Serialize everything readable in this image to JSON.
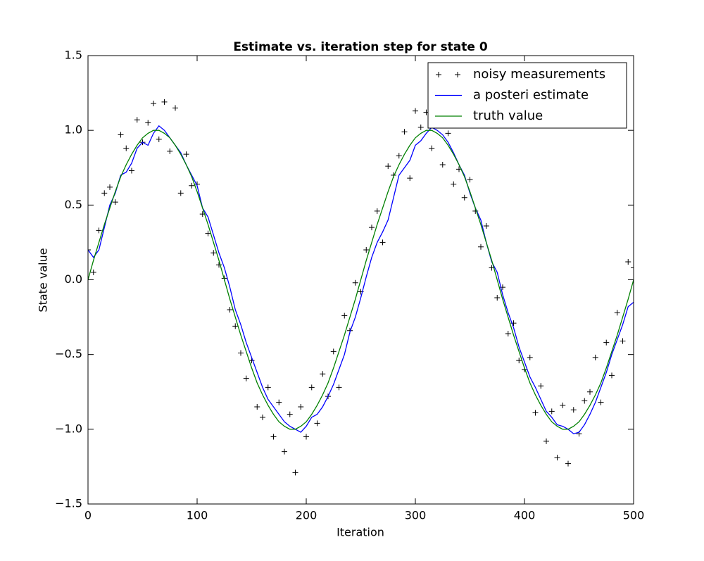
{
  "chart_data": {
    "type": "line",
    "title": "Estimate vs. iteration step for state 0",
    "x_label": "Iteration",
    "y_label": "State value",
    "x": [
      0,
      5,
      10,
      15,
      20,
      25,
      30,
      35,
      40,
      45,
      50,
      55,
      60,
      65,
      70,
      75,
      80,
      85,
      90,
      95,
      100,
      105,
      110,
      115,
      120,
      125,
      130,
      135,
      140,
      145,
      150,
      155,
      160,
      165,
      170,
      175,
      180,
      185,
      190,
      195,
      200,
      205,
      210,
      215,
      220,
      225,
      230,
      235,
      240,
      245,
      250,
      255,
      260,
      265,
      270,
      275,
      280,
      285,
      290,
      295,
      300,
      305,
      310,
      315,
      320,
      325,
      330,
      335,
      340,
      345,
      350,
      355,
      360,
      365,
      370,
      375,
      380,
      385,
      390,
      395,
      400,
      405,
      410,
      415,
      420,
      425,
      430,
      435,
      440,
      445,
      450,
      455,
      460,
      465,
      470,
      475,
      480,
      485,
      490,
      495,
      500
    ],
    "series": [
      {
        "name": "noisy measurements",
        "color": "#000000",
        "style": "marker",
        "values": [
          0.2,
          0.05,
          0.33,
          0.58,
          0.62,
          0.52,
          0.97,
          0.88,
          0.73,
          1.07,
          0.92,
          1.05,
          1.18,
          0.94,
          1.19,
          0.86,
          1.15,
          0.58,
          0.84,
          0.63,
          0.64,
          0.44,
          0.31,
          0.18,
          0.1,
          0.01,
          -0.2,
          -0.31,
          -0.49,
          -0.66,
          -0.54,
          -0.85,
          -0.92,
          -0.72,
          -1.05,
          -0.82,
          -1.15,
          -0.9,
          -1.29,
          -0.85,
          -1.05,
          -0.72,
          -0.96,
          -0.63,
          -0.78,
          -0.48,
          -0.72,
          -0.24,
          -0.34,
          -0.02,
          -0.08,
          0.2,
          0.35,
          0.46,
          0.25,
          0.76,
          0.7,
          0.83,
          0.99,
          0.68,
          1.13,
          1.02,
          1.12,
          0.88,
          1.09,
          0.77,
          0.98,
          0.64,
          0.74,
          0.55,
          0.67,
          0.46,
          0.22,
          0.36,
          0.08,
          -0.12,
          -0.05,
          -0.36,
          -0.29,
          -0.54,
          -0.6,
          -0.52,
          -0.89,
          -0.71,
          -1.08,
          -0.88,
          -1.19,
          -0.84,
          -1.23,
          -0.87,
          -1.03,
          -0.81,
          -0.75,
          -0.52,
          -0.82,
          -0.42,
          -0.64,
          -0.22,
          -0.41,
          0.12,
          0.08
        ]
      },
      {
        "name": "a posteri estimate",
        "color": "#0000ff",
        "style": "line",
        "values": [
          0.2,
          0.15,
          0.2,
          0.35,
          0.5,
          0.58,
          0.7,
          0.72,
          0.78,
          0.88,
          0.92,
          0.9,
          0.98,
          1.03,
          1.0,
          0.95,
          0.9,
          0.85,
          0.77,
          0.7,
          0.63,
          0.48,
          0.42,
          0.3,
          0.18,
          0.08,
          -0.05,
          -0.2,
          -0.3,
          -0.42,
          -0.52,
          -0.62,
          -0.72,
          -0.8,
          -0.85,
          -0.9,
          -0.95,
          -0.98,
          -1.0,
          -1.02,
          -0.98,
          -0.92,
          -0.9,
          -0.85,
          -0.78,
          -0.7,
          -0.6,
          -0.5,
          -0.35,
          -0.25,
          -0.12,
          0.02,
          0.15,
          0.25,
          0.32,
          0.4,
          0.55,
          0.7,
          0.75,
          0.8,
          0.9,
          0.93,
          0.98,
          1.02,
          1.0,
          0.97,
          0.92,
          0.85,
          0.77,
          0.7,
          0.58,
          0.48,
          0.4,
          0.25,
          0.12,
          0.05,
          -0.1,
          -0.22,
          -0.32,
          -0.45,
          -0.55,
          -0.65,
          -0.72,
          -0.8,
          -0.88,
          -0.92,
          -0.97,
          -0.98,
          -1.0,
          -1.03,
          -1.02,
          -0.97,
          -0.9,
          -0.82,
          -0.72,
          -0.62,
          -0.5,
          -0.4,
          -0.3,
          -0.18,
          -0.15
        ]
      },
      {
        "name": "truth value",
        "color": "#008000",
        "style": "line",
        "values": [
          0,
          0.13,
          0.25,
          0.37,
          0.48,
          0.59,
          0.69,
          0.77,
          0.84,
          0.9,
          0.95,
          0.98,
          1.0,
          1.0,
          0.98,
          0.95,
          0.9,
          0.84,
          0.77,
          0.69,
          0.59,
          0.48,
          0.37,
          0.25,
          0.13,
          0,
          -0.13,
          -0.25,
          -0.37,
          -0.48,
          -0.59,
          -0.69,
          -0.77,
          -0.84,
          -0.9,
          -0.95,
          -0.98,
          -1.0,
          -1.0,
          -0.98,
          -0.95,
          -0.9,
          -0.84,
          -0.77,
          -0.69,
          -0.59,
          -0.48,
          -0.37,
          -0.25,
          -0.13,
          0,
          0.13,
          0.25,
          0.37,
          0.48,
          0.59,
          0.69,
          0.77,
          0.84,
          0.9,
          0.95,
          0.98,
          1.0,
          1.0,
          0.98,
          0.95,
          0.9,
          0.84,
          0.77,
          0.69,
          0.59,
          0.48,
          0.37,
          0.25,
          0.13,
          0,
          -0.13,
          -0.25,
          -0.37,
          -0.48,
          -0.59,
          -0.69,
          -0.77,
          -0.84,
          -0.9,
          -0.95,
          -0.98,
          -1.0,
          -1.0,
          -0.98,
          -0.95,
          -0.9,
          -0.84,
          -0.77,
          -0.69,
          -0.59,
          -0.48,
          -0.37,
          -0.25,
          -0.13,
          0
        ]
      }
    ],
    "xlim": [
      0,
      500
    ],
    "xticks": [
      0,
      100,
      200,
      300,
      400,
      500
    ],
    "ylim": [
      -1.5,
      1.5
    ],
    "yticks": [
      {
        "value": -1.5,
        "label": "−1.5"
      },
      {
        "value": -1.0,
        "label": "−1.0"
      },
      {
        "value": -0.5,
        "label": "−0.5"
      },
      {
        "value": 0,
        "label": "0.0"
      },
      0.5,
      {
        "value": 1.0,
        "label": "1.0"
      },
      1.5
    ],
    "legend": "upper right",
    "grid": false
  }
}
